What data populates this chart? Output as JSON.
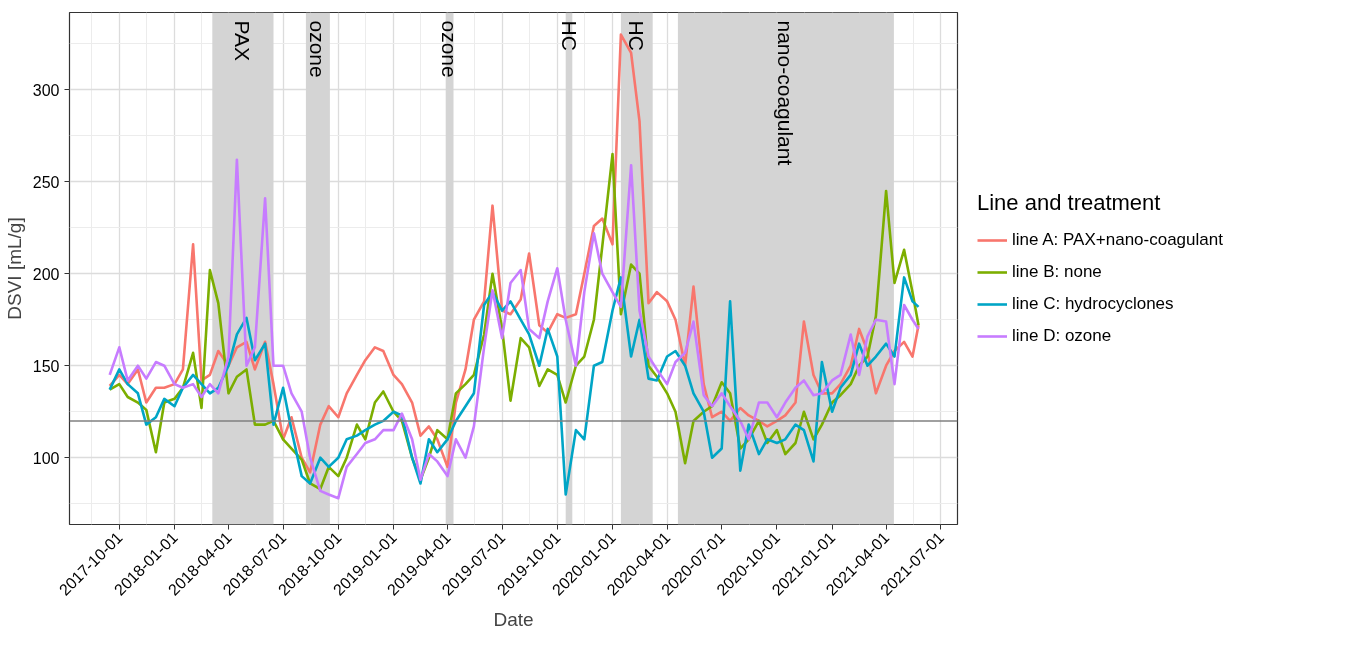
{
  "chart_data": {
    "type": "line",
    "xlabel": "Date",
    "ylabel": "DSVI [mL/g]",
    "legend_title": "Line and treatment",
    "legend": "right",
    "grid": true,
    "line_style": "solid",
    "marker": "none",
    "xlim": [
      "2017-07-10",
      "2021-07-29"
    ],
    "ylim": [
      63.7,
      342
    ],
    "xticks": [
      "2017-10-01",
      "2018-01-01",
      "2018-04-01",
      "2018-07-01",
      "2018-10-01",
      "2019-01-01",
      "2019-04-01",
      "2019-07-01",
      "2019-10-01",
      "2020-01-01",
      "2020-04-01",
      "2020-07-01",
      "2020-10-01",
      "2021-01-01",
      "2021-04-01",
      "2021-07-01"
    ],
    "yticks": [
      100,
      150,
      200,
      250,
      300
    ],
    "x": [
      "2017-09-15",
      "2017-10-01",
      "2017-10-15",
      "2017-11-01",
      "2017-11-15",
      "2017-12-01",
      "2017-12-15",
      "2018-01-01",
      "2018-01-15",
      "2018-02-01",
      "2018-02-15",
      "2018-03-01",
      "2018-03-15",
      "2018-04-01",
      "2018-04-15",
      "2018-05-01",
      "2018-05-15",
      "2018-06-01",
      "2018-06-15",
      "2018-07-01",
      "2018-07-15",
      "2018-08-01",
      "2018-08-15",
      "2018-09-01",
      "2018-09-15",
      "2018-10-01",
      "2018-10-15",
      "2018-11-01",
      "2018-11-15",
      "2018-12-01",
      "2018-12-15",
      "2019-01-01",
      "2019-01-15",
      "2019-02-01",
      "2019-02-15",
      "2019-03-01",
      "2019-03-15",
      "2019-04-01",
      "2019-04-15",
      "2019-05-01",
      "2019-05-15",
      "2019-06-01",
      "2019-06-15",
      "2019-07-01",
      "2019-07-15",
      "2019-08-01",
      "2019-08-15",
      "2019-09-01",
      "2019-09-15",
      "2019-10-01",
      "2019-10-15",
      "2019-11-01",
      "2019-11-15",
      "2019-12-01",
      "2019-12-15",
      "2020-01-01",
      "2020-01-15",
      "2020-02-01",
      "2020-02-15",
      "2020-03-01",
      "2020-03-15",
      "2020-04-01",
      "2020-04-15",
      "2020-05-01",
      "2020-05-15",
      "2020-06-01",
      "2020-06-15",
      "2020-07-01",
      "2020-07-15",
      "2020-08-01",
      "2020-08-15",
      "2020-09-01",
      "2020-09-15",
      "2020-10-01",
      "2020-10-15",
      "2020-11-01",
      "2020-11-15",
      "2020-12-01",
      "2020-12-15",
      "2021-01-01",
      "2021-01-15",
      "2021-02-01",
      "2021-02-15",
      "2021-03-01",
      "2021-03-15",
      "2021-04-01",
      "2021-04-15",
      "2021-05-01",
      "2021-05-15",
      "2021-05-25"
    ],
    "series": [
      {
        "name": "line A: PAX+nano-coagulant",
        "color": "#f8766d",
        "values": [
          139,
          145,
          140,
          148,
          130,
          138,
          138,
          140,
          148,
          216,
          142,
          145,
          158,
          150,
          160,
          163,
          148,
          163,
          140,
          110,
          122,
          100,
          92,
          118,
          128,
          122,
          135,
          145,
          153,
          160,
          158,
          145,
          140,
          130,
          112,
          117,
          110,
          95,
          130,
          148,
          175,
          185,
          237,
          180,
          178,
          186,
          211,
          172,
          168,
          178,
          176,
          178,
          200,
          226,
          230,
          216,
          330,
          320,
          283,
          184,
          190,
          185,
          175,
          150,
          193,
          140,
          122,
          125,
          120,
          127,
          123,
          120,
          117,
          120,
          123,
          130,
          174,
          145,
          135,
          135,
          140,
          150,
          170,
          158,
          135,
          150,
          158,
          163,
          155,
          172
        ]
      },
      {
        "name": "line B: none",
        "color": "#7cae00",
        "values": [
          137,
          140,
          133,
          130,
          126,
          103,
          130,
          132,
          138,
          157,
          127,
          202,
          184,
          135,
          144,
          148,
          118,
          118,
          120,
          110,
          105,
          99,
          86,
          83,
          95,
          90,
          100,
          118,
          110,
          130,
          136,
          125,
          120,
          100,
          88,
          100,
          115,
          110,
          135,
          140,
          145,
          167,
          200,
          170,
          131,
          165,
          160,
          139,
          148,
          145,
          130,
          150,
          155,
          175,
          215,
          265,
          178,
          205,
          200,
          150,
          144,
          135,
          125,
          97,
          120,
          125,
          128,
          141,
          135,
          105,
          110,
          120,
          108,
          115,
          102,
          108,
          125,
          110,
          118,
          130,
          134,
          140,
          150,
          155,
          177,
          245,
          195,
          213,
          190,
          172
        ]
      },
      {
        "name": "line C: hydrocyclones",
        "color": "#00a5c6",
        "values": [
          137,
          148,
          140,
          135,
          118,
          122,
          132,
          128,
          138,
          145,
          140,
          135,
          138,
          150,
          167,
          176,
          153,
          162,
          118,
          138,
          115,
          90,
          86,
          100,
          95,
          100,
          110,
          112,
          115,
          118,
          120,
          125,
          123,
          100,
          86,
          110,
          103,
          110,
          120,
          128,
          135,
          183,
          190,
          180,
          185,
          175,
          167,
          150,
          170,
          155,
          80,
          115,
          110,
          150,
          152,
          180,
          198,
          155,
          175,
          143,
          142,
          155,
          158,
          150,
          135,
          125,
          100,
          105,
          185,
          93,
          118,
          102,
          110,
          108,
          110,
          118,
          115,
          98,
          152,
          125,
          138,
          145,
          162,
          150,
          155,
          162,
          155,
          198,
          185,
          182
        ]
      },
      {
        "name": "line D: ozone",
        "color": "#c77cff",
        "values": [
          145,
          160,
          142,
          150,
          143,
          152,
          150,
          140,
          138,
          140,
          133,
          140,
          135,
          155,
          262,
          150,
          160,
          241,
          150,
          150,
          135,
          125,
          100,
          82,
          80,
          78,
          95,
          102,
          108,
          110,
          115,
          115,
          124,
          110,
          88,
          102,
          98,
          90,
          110,
          100,
          117,
          160,
          191,
          165,
          195,
          202,
          170,
          165,
          185,
          203,
          175,
          150,
          190,
          222,
          200,
          190,
          182,
          259,
          180,
          155,
          148,
          140,
          152,
          157,
          174,
          134,
          128,
          135,
          128,
          120,
          110,
          130,
          130,
          122,
          130,
          138,
          142,
          134,
          135,
          142,
          145,
          167,
          145,
          166,
          175,
          174,
          140,
          183,
          175,
          170
        ]
      }
    ],
    "ref_lines": [
      {
        "axis": "y",
        "value": 120,
        "color": "#808080"
      }
    ],
    "bands": [
      {
        "axis": "x",
        "from": "2018-03-05",
        "to": "2018-06-15",
        "label": "PAX",
        "color": "#d4d4d4"
      },
      {
        "axis": "x",
        "from": "2018-08-08",
        "to": "2018-09-17",
        "label": "ozone",
        "color": "#d4d4d4"
      },
      {
        "axis": "x",
        "from": "2019-03-29",
        "to": "2019-04-11",
        "label": "ozone",
        "color": "#d4d4d4"
      },
      {
        "axis": "x",
        "from": "2019-10-15",
        "to": "2019-10-26",
        "label": "HC",
        "color": "#d4d4d4"
      },
      {
        "axis": "x",
        "from": "2020-01-15",
        "to": "2020-03-08",
        "label": "HC",
        "color": "#d4d4d4"
      },
      {
        "axis": "x",
        "from": "2020-04-19",
        "to": "2021-04-14",
        "label": "nano-coagulant",
        "color": "#d4d4d4"
      }
    ]
  }
}
